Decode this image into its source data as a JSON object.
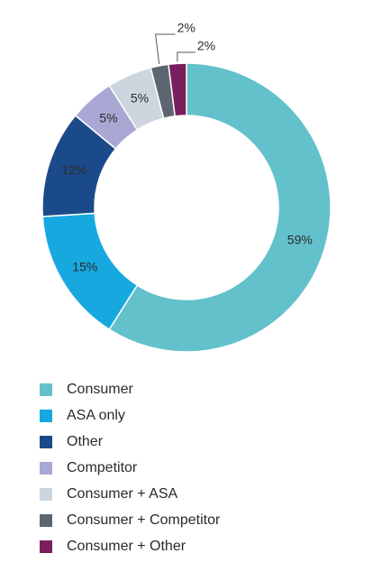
{
  "chart_data": {
    "type": "pie",
    "donut": true,
    "categories": [
      "Consumer",
      "ASA only",
      "Other",
      "Competitor",
      "Consumer + ASA",
      "Consumer + Competitor",
      "Consumer + Other"
    ],
    "values": [
      59,
      15,
      12,
      5,
      5,
      2,
      2
    ],
    "labels": [
      "59%",
      "15%",
      "12%",
      "5%",
      "5%",
      "2%",
      "2%"
    ],
    "colors": [
      "#63c1cc",
      "#17a8e0",
      "#1b4a8a",
      "#a9a8d4",
      "#cdd5df",
      "#5c6670",
      "#7a1e5e"
    ],
    "legend_position": "bottom"
  }
}
